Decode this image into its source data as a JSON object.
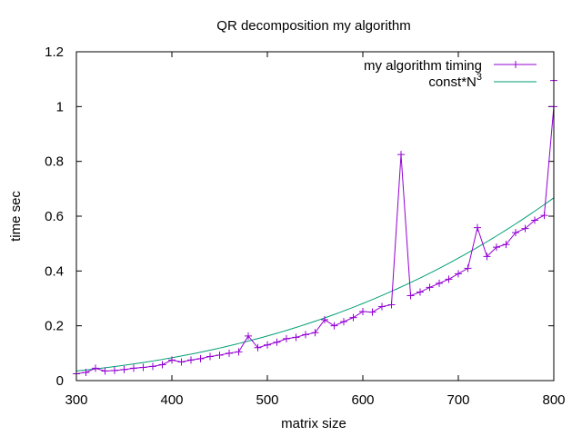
{
  "chart_data": {
    "type": "line",
    "title": "QR decomposition my algorithm",
    "xlabel": "matrix size",
    "ylabel": "time sec",
    "xlim": [
      300,
      800
    ],
    "ylim": [
      0,
      1.2
    ],
    "x_ticks": [
      "300",
      "400",
      "500",
      "600",
      "700",
      "800"
    ],
    "y_ticks": [
      "0",
      "0.2",
      "0.4",
      "0.6",
      "0.8",
      "1",
      "1.2"
    ],
    "grid": false,
    "legend_position": "top-right",
    "x": [
      300,
      310,
      320,
      330,
      340,
      350,
      360,
      370,
      380,
      390,
      400,
      410,
      420,
      430,
      440,
      450,
      460,
      470,
      480,
      490,
      500,
      510,
      520,
      530,
      540,
      550,
      560,
      570,
      580,
      590,
      600,
      610,
      620,
      630,
      640,
      650,
      660,
      670,
      680,
      690,
      700,
      710,
      720,
      730,
      740,
      750,
      760,
      770,
      780,
      790,
      800
    ],
    "series": [
      {
        "name": "my algorithm timing",
        "color": "#9400d3",
        "marker": "+",
        "values": [
          0.025,
          0.03,
          0.045,
          0.035,
          0.037,
          0.04,
          0.045,
          0.048,
          0.052,
          0.058,
          0.075,
          0.068,
          0.075,
          0.08,
          0.088,
          0.093,
          0.1,
          0.105,
          0.163,
          0.12,
          0.13,
          0.14,
          0.153,
          0.158,
          0.168,
          0.175,
          0.222,
          0.2,
          0.215,
          0.23,
          0.252,
          0.25,
          0.27,
          0.277,
          0.825,
          0.31,
          0.323,
          0.34,
          0.355,
          0.37,
          0.39,
          0.41,
          0.558,
          0.453,
          0.487,
          0.497,
          0.54,
          0.555,
          0.585,
          0.603,
          1.0
        ]
      },
      {
        "name": "const*N^3",
        "color": "#009e73",
        "values": "const*N^3"
      }
    ],
    "extra_point": {
      "x": 800,
      "y": 1.095
    },
    "legend": [
      {
        "label": "my algorithm timing"
      },
      {
        "label_base": "const*N",
        "label_sup": "3"
      }
    ]
  }
}
